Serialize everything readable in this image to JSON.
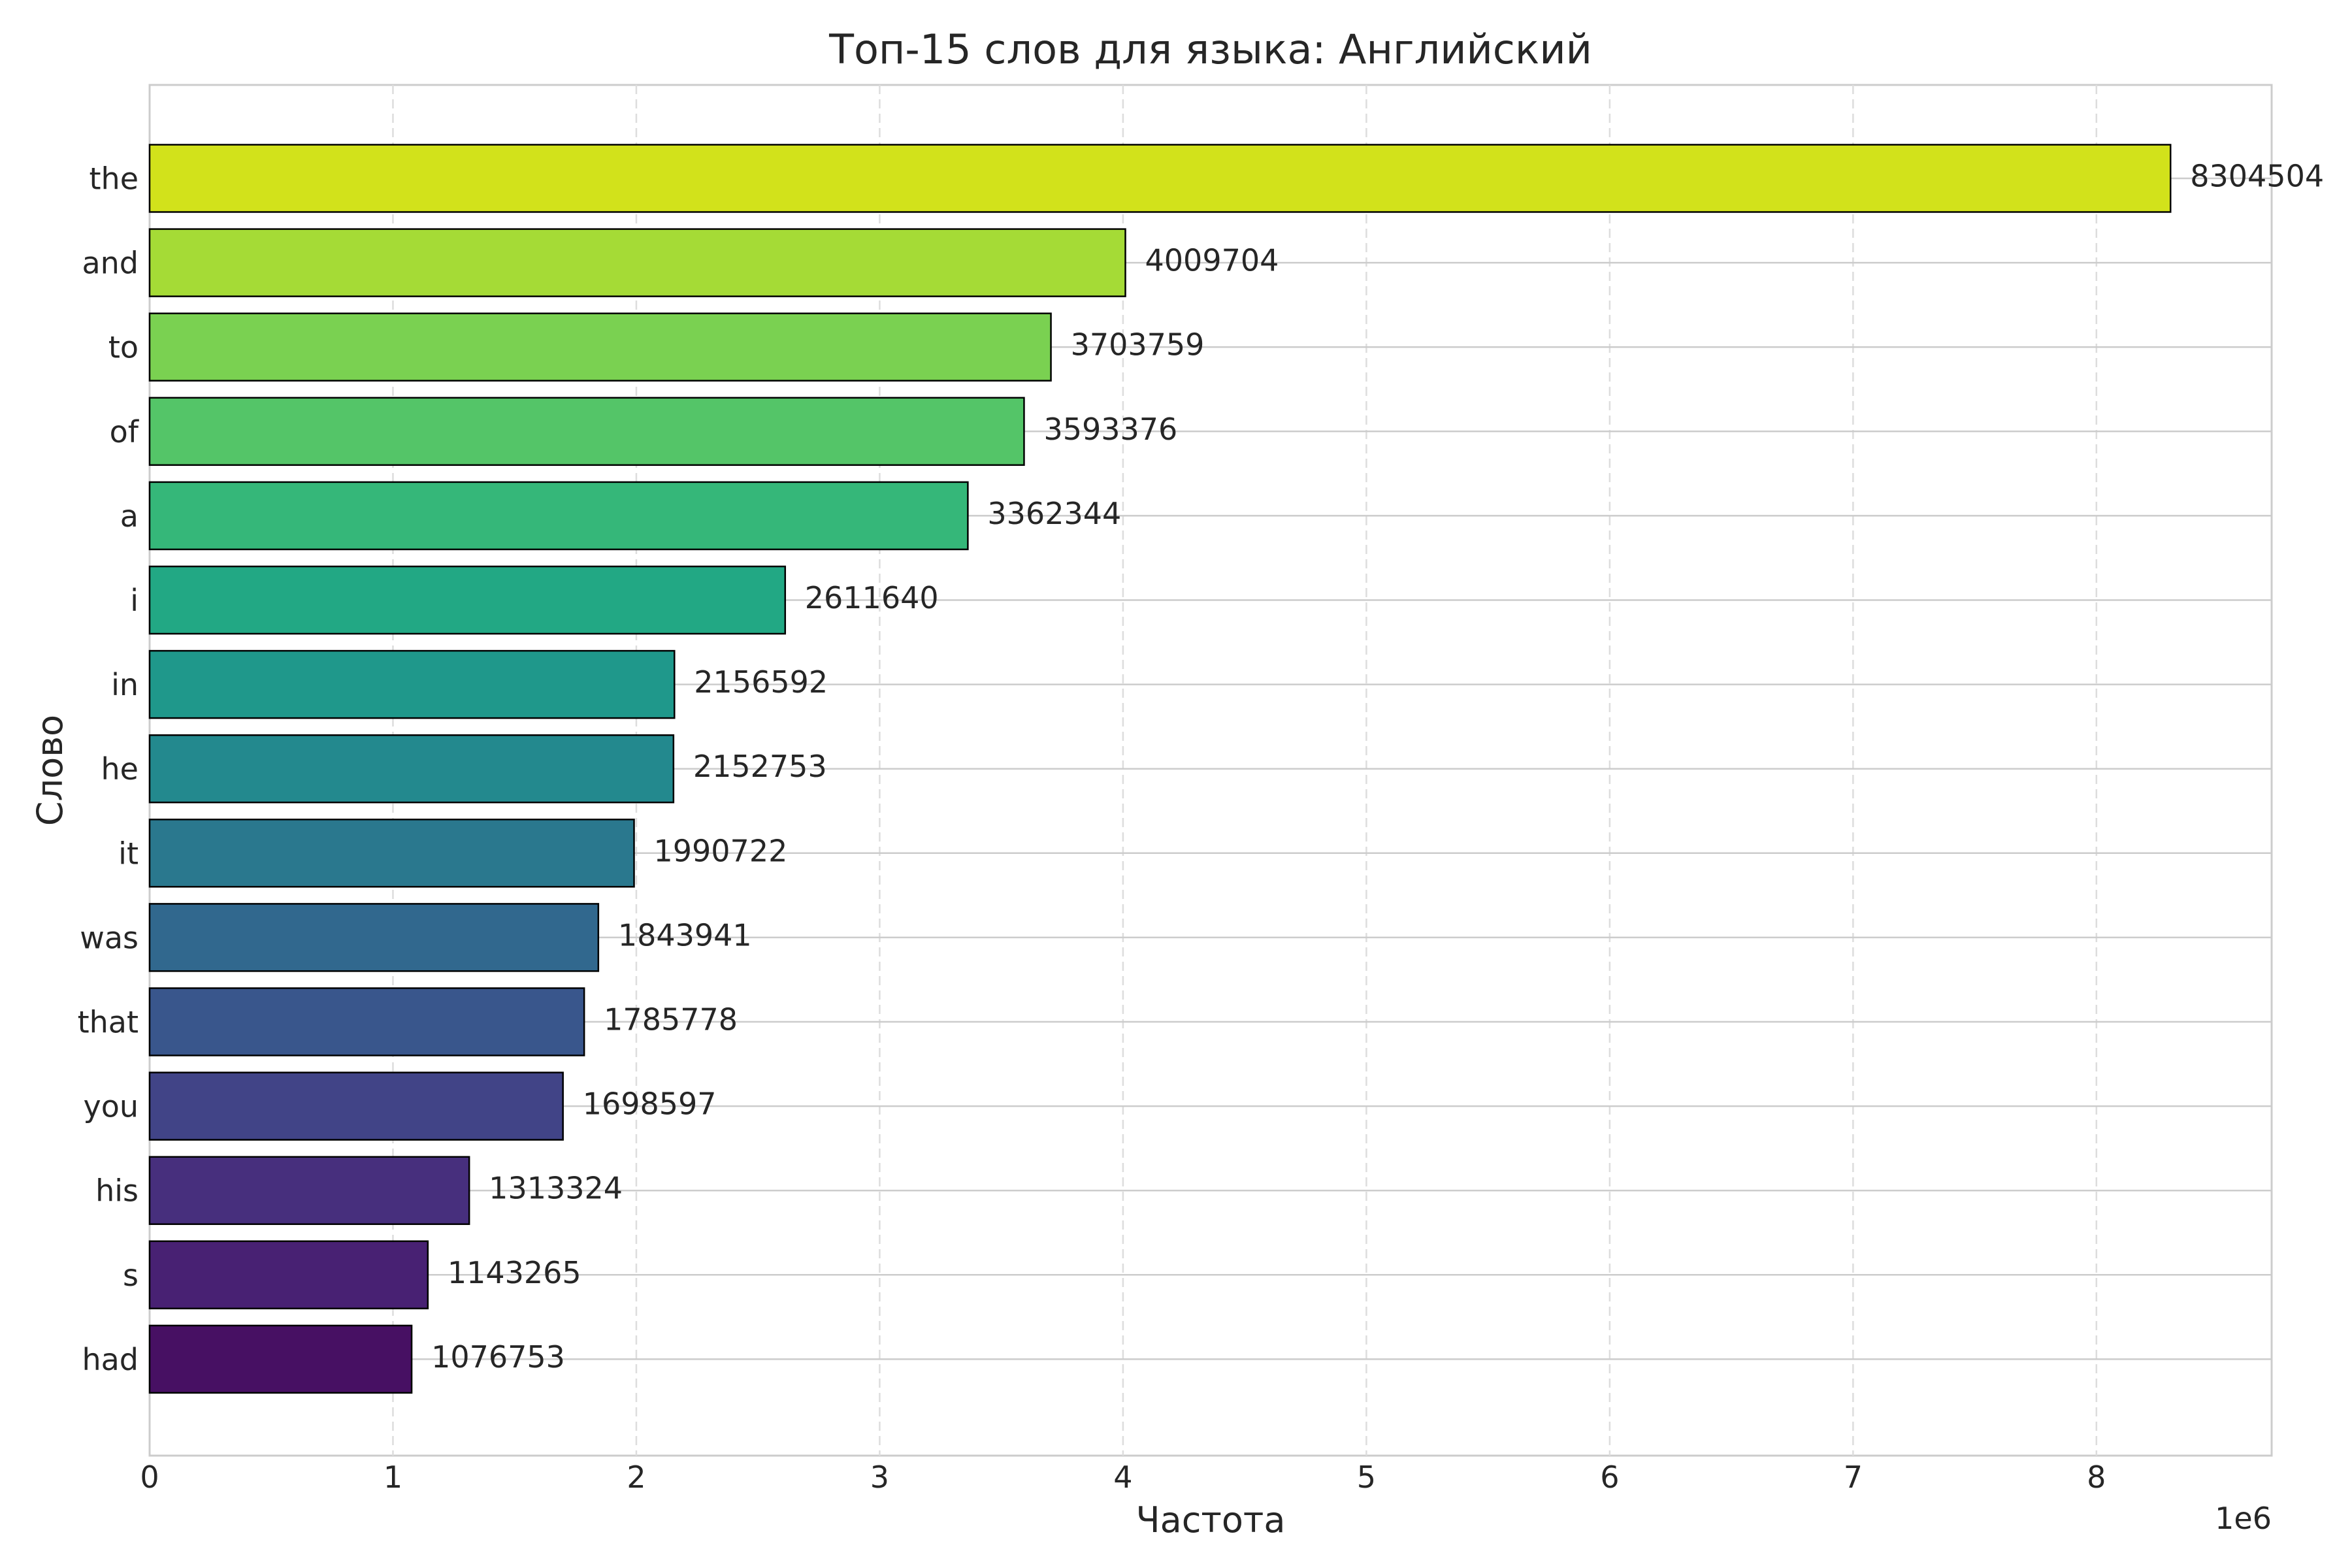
{
  "chart_data": {
    "type": "bar",
    "orientation": "horizontal",
    "title": "Топ-15 слов для языка: Английский",
    "xlabel": "Частота",
    "ylabel": "Слово",
    "x_offset_label": "1e6",
    "x_ticks": [
      0,
      1,
      2,
      3,
      4,
      5,
      6,
      7,
      8
    ],
    "x_tick_scale": 1000000,
    "xlim": [
      0,
      8720000
    ],
    "categories": [
      "the",
      "and",
      "to",
      "of",
      "a",
      "i",
      "in",
      "he",
      "it",
      "was",
      "that",
      "you",
      "his",
      "s",
      "had"
    ],
    "values": [
      8304504,
      4009704,
      3703759,
      3593376,
      3362344,
      2611640,
      2156592,
      2152753,
      1990722,
      1843941,
      1785778,
      1698597,
      1313324,
      1143265,
      1076753
    ],
    "data_labels": [
      "8304504",
      "4009704",
      "3703759",
      "3593376",
      "3362344",
      "2611640",
      "2156592",
      "2152753",
      "1990722",
      "1843941",
      "1785778",
      "1698597",
      "1313324",
      "1143265",
      "1076753"
    ],
    "colors": [
      "#d2e21b",
      "#a5db36",
      "#7ad151",
      "#54c568",
      "#35b779",
      "#22a884",
      "#1f988b",
      "#23898e",
      "#2a788e",
      "#31688e",
      "#39568c",
      "#414487",
      "#472f7d",
      "#482173",
      "#471063"
    ],
    "bar_edge_color": "#000000",
    "grid": true,
    "legend": "none"
  }
}
